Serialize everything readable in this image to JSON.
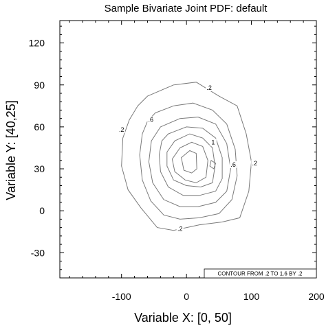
{
  "chart_data": {
    "type": "contour",
    "title": "Sample Bivariate Joint PDF: default",
    "xlabel": "Variable X: [0, 50]",
    "ylabel": "Variable Y: [40,25]",
    "xlim": [
      -195,
      200
    ],
    "ylim": [
      -48,
      136
    ],
    "x_ticks": [
      -100,
      0,
      100,
      200
    ],
    "x_tick_labels": [
      "-100",
      "0",
      "100",
      "200"
    ],
    "y_ticks": [
      -30,
      0,
      30,
      60,
      90,
      120
    ],
    "y_tick_labels": [
      "-30",
      "0",
      "30",
      "60",
      "90",
      "120"
    ],
    "contour_info": "CONTOUR FROM .2 TO 1.6 BY .2",
    "contour_levels": [
      0.2,
      0.4,
      0.6,
      0.8,
      1.0,
      1.2,
      1.4,
      1.6
    ],
    "contours": [
      {
        "level": 0.2,
        "points": [
          [
            -60,
            82
          ],
          [
            -20,
            90
          ],
          [
            15,
            92
          ],
          [
            50,
            82
          ],
          [
            78,
            75
          ],
          [
            92,
            55
          ],
          [
            100,
            35
          ],
          [
            96,
            14
          ],
          [
            82,
            -5
          ],
          [
            55,
            -8
          ],
          [
            20,
            -10
          ],
          [
            -20,
            -14
          ],
          [
            -45,
            -12
          ],
          [
            -70,
            2
          ],
          [
            -90,
            15
          ],
          [
            -100,
            32
          ],
          [
            -98,
            52
          ],
          [
            -88,
            65
          ],
          [
            -75,
            75
          ]
        ]
      },
      {
        "level": 0.4,
        "points": [
          [
            -48,
            70
          ],
          [
            -20,
            75
          ],
          [
            10,
            77
          ],
          [
            40,
            72
          ],
          [
            62,
            62
          ],
          [
            75,
            44
          ],
          [
            78,
            25
          ],
          [
            70,
            8
          ],
          [
            50,
            -2
          ],
          [
            20,
            -5
          ],
          [
            -10,
            -6
          ],
          [
            -35,
            -3
          ],
          [
            -55,
            7
          ],
          [
            -68,
            22
          ],
          [
            -72,
            40
          ],
          [
            -68,
            55
          ],
          [
            -60,
            64
          ]
        ]
      },
      {
        "level": 0.6,
        "points": [
          [
            -40,
            60
          ],
          [
            -10,
            66
          ],
          [
            18,
            67
          ],
          [
            45,
            62
          ],
          [
            62,
            48
          ],
          [
            68,
            30
          ],
          [
            62,
            14
          ],
          [
            45,
            6
          ],
          [
            18,
            3
          ],
          [
            -10,
            3
          ],
          [
            -35,
            8
          ],
          [
            -52,
            20
          ],
          [
            -58,
            35
          ],
          [
            -54,
            50
          ]
        ]
      },
      {
        "level": 0.8,
        "points": [
          [
            -28,
            55
          ],
          [
            0,
            60
          ],
          [
            25,
            59
          ],
          [
            45,
            52
          ],
          [
            55,
            38
          ],
          [
            55,
            23
          ],
          [
            45,
            14
          ],
          [
            20,
            11
          ],
          [
            -5,
            11
          ],
          [
            -28,
            17
          ],
          [
            -40,
            28
          ],
          [
            -42,
            40
          ],
          [
            -38,
            50
          ]
        ]
      },
      {
        "level": 1.0,
        "points": [
          [
            -18,
            50
          ],
          [
            5,
            55
          ],
          [
            25,
            52
          ],
          [
            40,
            45
          ],
          [
            44,
            32
          ],
          [
            40,
            20
          ],
          [
            22,
            17
          ],
          [
            0,
            18
          ],
          [
            -20,
            22
          ],
          [
            -30,
            32
          ],
          [
            -30,
            42
          ]
        ]
      },
      {
        "level": 1.2,
        "points": [
          [
            -10,
            45
          ],
          [
            8,
            49
          ],
          [
            25,
            46
          ],
          [
            33,
            36
          ],
          [
            30,
            24
          ],
          [
            15,
            20
          ],
          [
            -2,
            22
          ],
          [
            -18,
            28
          ],
          [
            -22,
            37
          ]
        ]
      },
      {
        "level": 1.4,
        "points": [
          [
            -8,
            38
          ],
          [
            5,
            43
          ],
          [
            15,
            41
          ],
          [
            16,
            30
          ],
          [
            8,
            27
          ],
          [
            -4,
            29
          ]
        ]
      },
      {
        "level": 1.4,
        "points": [
          [
            38,
            36
          ],
          [
            45,
            34
          ],
          [
            42,
            30
          ],
          [
            36,
            32
          ]
        ]
      }
    ],
    "contour_labels": [
      {
        "text": ".2",
        "x": 35,
        "y": 88
      },
      {
        "text": ".2",
        "x": -100,
        "y": 58
      },
      {
        "text": ".2",
        "x": 105,
        "y": 34
      },
      {
        "text": ".2",
        "x": -10,
        "y": -13
      },
      {
        "text": ".6",
        "x": -55,
        "y": 65
      },
      {
        "text": "1",
        "x": 41,
        "y": 49
      },
      {
        "text": ".6",
        "x": 72,
        "y": 33
      }
    ]
  }
}
